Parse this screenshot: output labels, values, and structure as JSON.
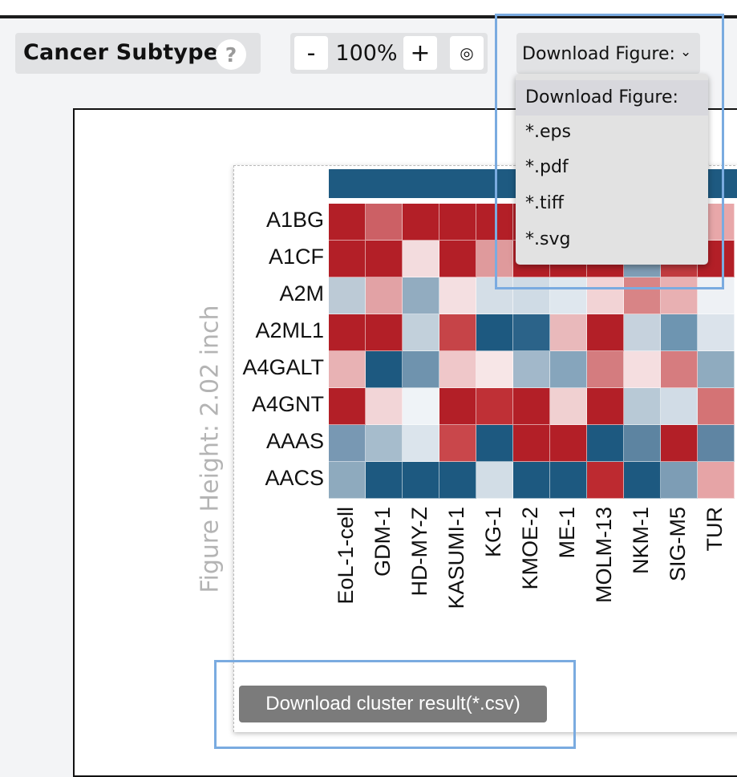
{
  "header": {
    "title": "Cancer Subtypes",
    "help_glyph": "?",
    "zoom": {
      "minus_label": "-",
      "value": "100%",
      "plus_label": "+",
      "reset_glyph": "◎"
    },
    "download": {
      "label": "Download Figure:",
      "chevron_glyph": "⌄"
    }
  },
  "dropdown": {
    "header": "Download Figure:",
    "options": [
      "*.eps",
      "*.pdf",
      "*.tiff",
      "*.svg"
    ]
  },
  "figure": {
    "height_label": "Figure Height: 2.02 inch",
    "header_bar_color": "#1e5a81",
    "genes": [
      "A1BG",
      "A1CF",
      "A2M",
      "A2ML1",
      "A4GALT",
      "A4GNT",
      "AAAS",
      "AACS"
    ],
    "cell_lines": [
      "EoL-1-cell",
      "GDM-1",
      "HD-MY-Z",
      "KASUMI-1",
      "KG-1",
      "KMOE-2",
      "ME-1",
      "MOLM-13",
      "NKM-1",
      "SIG-M5",
      "TUR"
    ],
    "heatmap_colors": [
      [
        "#b31f27",
        "#cc6065",
        "#b31f27",
        "#b31f27",
        "#b31f27",
        "#b31f27",
        "#b31f27",
        "#b31f27",
        "#b31f27",
        "#b31f27",
        "#e8a7a9"
      ],
      [
        "#b31f27",
        "#b31f27",
        "#f3dcde",
        "#b31f27",
        "#df9a9c",
        "#b31f27",
        "#b31f27",
        "#b31f27",
        "#7f9db5",
        "#c13a3f",
        "#b31f27"
      ],
      [
        "#bccad6",
        "#e2a2a5",
        "#92acc0",
        "#f4dfe1",
        "#d4dee7",
        "#cfdbe5",
        "#dfe7ee",
        "#f2d3d5",
        "#d88486",
        "#e8b0b2",
        "#eef1f5"
      ],
      [
        "#b31f27",
        "#b31f27",
        "#c2d0db",
        "#c64448",
        "#1d5980",
        "#2b6389",
        "#e9b9bb",
        "#b31f27",
        "#c6d2dd",
        "#6e95b1",
        "#dbe3eb"
      ],
      [
        "#e8b2b4",
        "#1d5980",
        "#6f93ae",
        "#efc7c9",
        "#f7e6e7",
        "#a2b8ca",
        "#86a5bc",
        "#d47c7f",
        "#f5dee0",
        "#d67c7f",
        "#8fabbf"
      ],
      [
        "#b31f27",
        "#f2d5d7",
        "#eff3f7",
        "#b31f27",
        "#bf3036",
        "#b31f27",
        "#f0d0d1",
        "#b31f27",
        "#b8c9d6",
        "#d1dce6",
        "#d47375"
      ],
      [
        "#7898b3",
        "#a6bccc",
        "#dbe4ec",
        "#c9474b",
        "#1d5980",
        "#b31f27",
        "#b31f27",
        "#1d5980",
        "#5d84a1",
        "#b31f27",
        "#5f85a3"
      ],
      [
        "#8eaabe",
        "#1d5980",
        "#1d5980",
        "#1d5980",
        "#d2dde6",
        "#1d5980",
        "#1d5980",
        "#bd2a30",
        "#1d5980",
        "#7d9db5",
        "#e6a4a6"
      ]
    ]
  },
  "csv_button": "Download cluster result(*.csv)"
}
